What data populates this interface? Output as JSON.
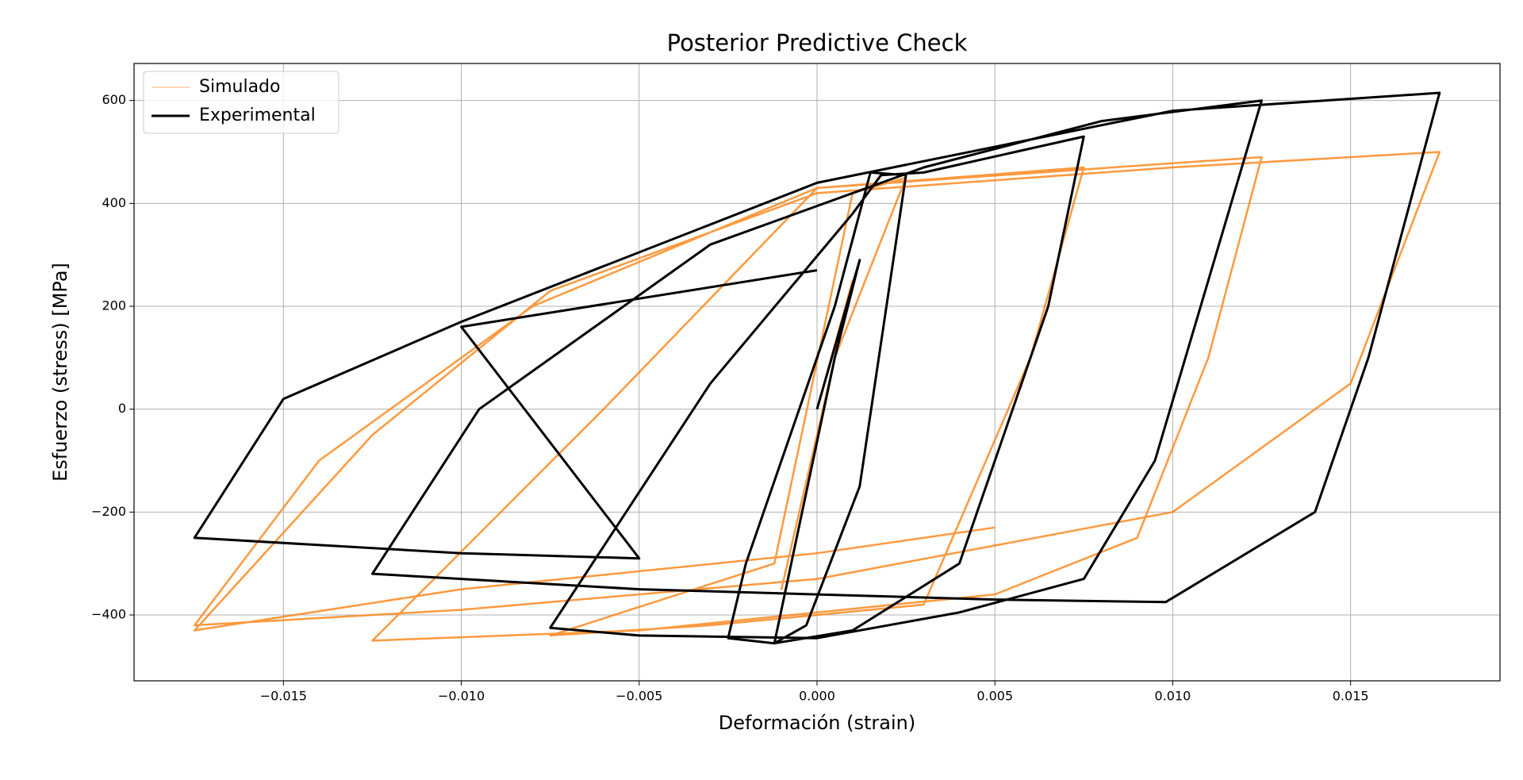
{
  "chart_data": {
    "type": "line",
    "title": "Posterior Predictive Check",
    "x_label": "Deformación (strain)",
    "y_label": "Esfuerzo (stress) [MPa]",
    "xlim": [
      -0.0192,
      0.0192
    ],
    "ylim": [
      -528,
      672
    ],
    "xticks": [
      {
        "value": -0.015,
        "label": "−0.015"
      },
      {
        "value": -0.01,
        "label": "−0.010"
      },
      {
        "value": -0.005,
        "label": "−0.005"
      },
      {
        "value": 0,
        "label": "0.000"
      },
      0.005,
      {
        "value": 0.01,
        "label": "0.010"
      },
      0.015
    ],
    "yticks": [
      {
        "value": -400,
        "label": "−400"
      },
      {
        "value": -200,
        "label": "−200"
      },
      0,
      200,
      400,
      600
    ],
    "grid": true,
    "legend": "upper left",
    "series": [
      {
        "name": "Simulado",
        "color": "#ff7f0e",
        "x": [
          0,
          0.001,
          -0.001,
          0.0005,
          0.0025,
          0.001,
          -0.0012,
          -0.0075,
          -0.003,
          0.003,
          0.006,
          0.0075,
          0,
          -0.006,
          -0.0125,
          -0.005,
          0.005,
          0.009,
          0.011,
          0.0125,
          0,
          -0.008,
          -0.014,
          -0.0175,
          -0.01,
          0,
          0.01,
          0.015,
          0.0175,
          0.01,
          0,
          -0.0075,
          -0.0125,
          -0.0175,
          -0.01,
          0,
          0.005
        ],
        "y": [
          0,
          250,
          -350,
          100,
          450,
          420,
          -300,
          -440,
          -420,
          -380,
          100,
          470,
          430,
          0,
          -450,
          -430,
          -360,
          -250,
          100,
          490,
          430,
          200,
          -100,
          -420,
          -390,
          -330,
          -200,
          50,
          500,
          470,
          420,
          230,
          -50,
          -430,
          -350,
          -280,
          -230
        ]
      },
      {
        "name": "Experimental",
        "color": "#000000",
        "x": [
          0,
          0.0012,
          0.0005,
          -0.0012,
          -0.0003,
          0.0012,
          0.0025,
          0.0015,
          0.0005,
          -0.002,
          -0.0025,
          -0.0012,
          0.001,
          0.004,
          0.0065,
          0.0075,
          0.003,
          0.0018,
          0.001,
          -0.003,
          -0.0075,
          -0.005,
          0,
          0.004,
          0.0075,
          0.0095,
          0.0125,
          0.008,
          0.003,
          -0.003,
          -0.0095,
          -0.0125,
          -0.005,
          0.005,
          0.0098,
          0.014,
          0.0155,
          0.0175,
          0.01,
          0,
          -0.01,
          -0.015,
          -0.0175,
          -0.01,
          -0.005,
          -0.01,
          0
        ],
        "y": [
          0,
          290,
          100,
          -455,
          -420,
          -150,
          455,
          460,
          200,
          -300,
          -445,
          -455,
          -430,
          -300,
          200,
          530,
          460,
          455,
          380,
          50,
          -425,
          -440,
          -445,
          -395,
          -330,
          -100,
          600,
          560,
          470,
          320,
          0,
          -320,
          -350,
          -370,
          -375,
          -200,
          100,
          615,
          580,
          440,
          170,
          20,
          -250,
          -280,
          -290,
          160,
          270
        ]
      }
    ]
  }
}
